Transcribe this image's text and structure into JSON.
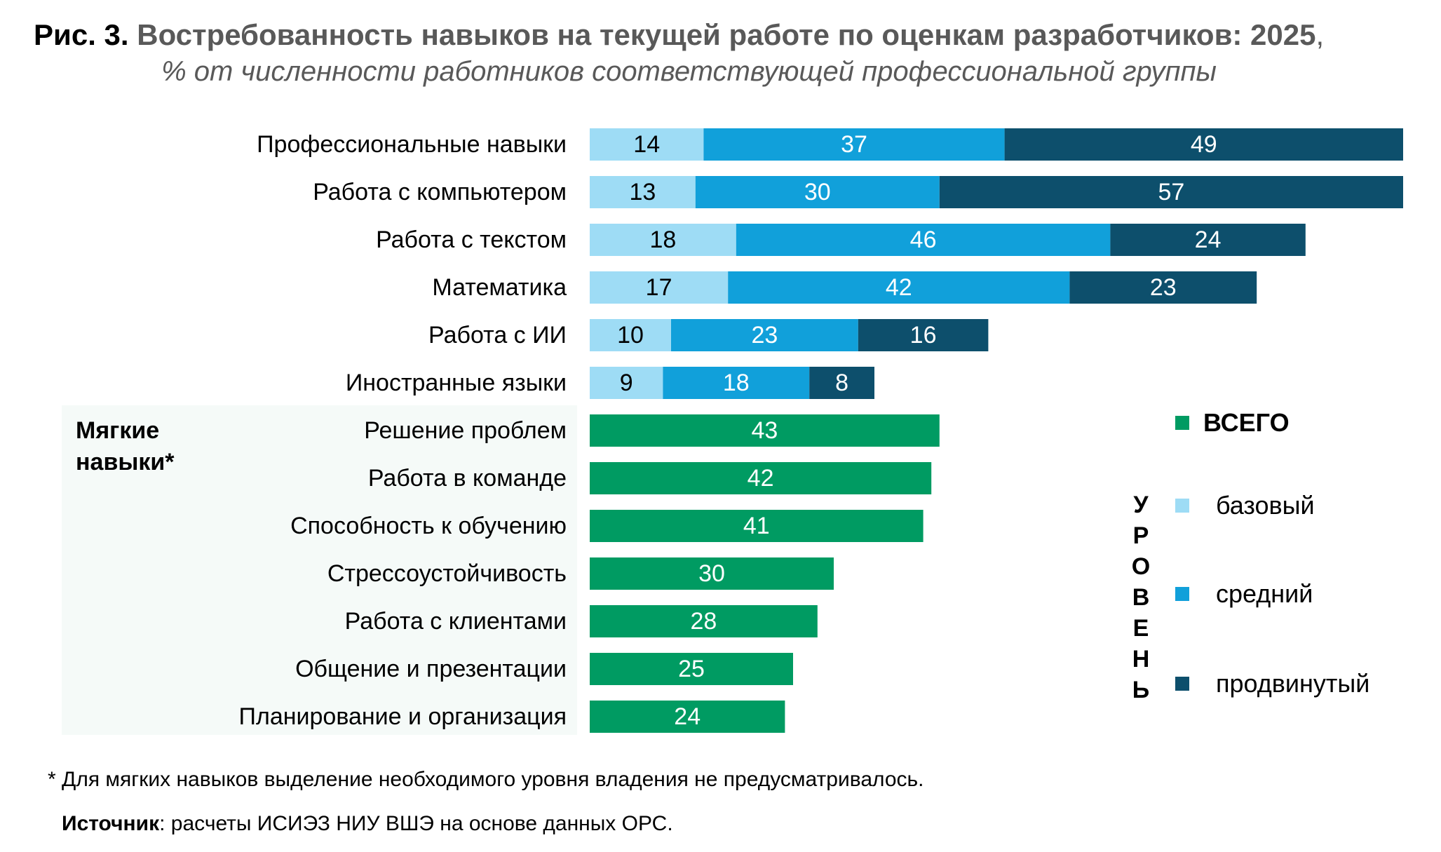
{
  "header": {
    "title_prefix": "Рис. 3.",
    "title_main": "Востребованность навыков на текущей работе по оценкам разработчиков: 2025",
    "title_comma": ",",
    "subtitle": "% от численности работников соответствующей профессиональной группы"
  },
  "soft_group_label": "Мягкие\nнавыки*",
  "legend": {
    "total": "ВСЕГО",
    "level_caption": "У\nР\nО\nВ\nЕ\nН\nЬ",
    "basic": "базовый",
    "medium": "средний",
    "advanced": "продвинутый"
  },
  "colors": {
    "basic": "#9edcf5",
    "medium": "#11a0da",
    "advanced": "#0d4f6c",
    "total": "#009b62",
    "soft_panel": "#f5faf8"
  },
  "footnote": "* Для мягких навыков выделение необходимого уровня владения не предусматривалось.",
  "source": {
    "label": "Источник",
    "text": ": расчеты ИСИЭЗ НИУ ВШЭ на основе данных ОРС."
  },
  "chart_data": [
    {
      "type": "bar",
      "orientation": "horizontal",
      "stacked": true,
      "categories": [
        "Профессиональные навыки",
        "Работа с компьютером",
        "Работа с текстом",
        "Математика",
        "Работа с ИИ",
        "Иностранные языки"
      ],
      "series": [
        {
          "name": "базовый",
          "values": [
            14,
            13,
            18,
            17,
            10,
            9
          ]
        },
        {
          "name": "средний",
          "values": [
            37,
            30,
            46,
            42,
            23,
            18
          ]
        },
        {
          "name": "продвинутый",
          "values": [
            49,
            57,
            24,
            23,
            16,
            8
          ]
        }
      ],
      "xlim": [
        0,
        100
      ]
    },
    {
      "type": "bar",
      "orientation": "horizontal",
      "group": "Мягкие навыки*",
      "categories": [
        "Решение проблем",
        "Работа в команде",
        "Способность к обучению",
        "Стрессоустойчивость",
        "Работа с клиентами",
        "Общение и презентации",
        "Планирование и организация"
      ],
      "series": [
        {
          "name": "ВСЕГО",
          "values": [
            43,
            42,
            41,
            30,
            28,
            25,
            24
          ]
        }
      ],
      "xlim": [
        0,
        100
      ]
    }
  ]
}
